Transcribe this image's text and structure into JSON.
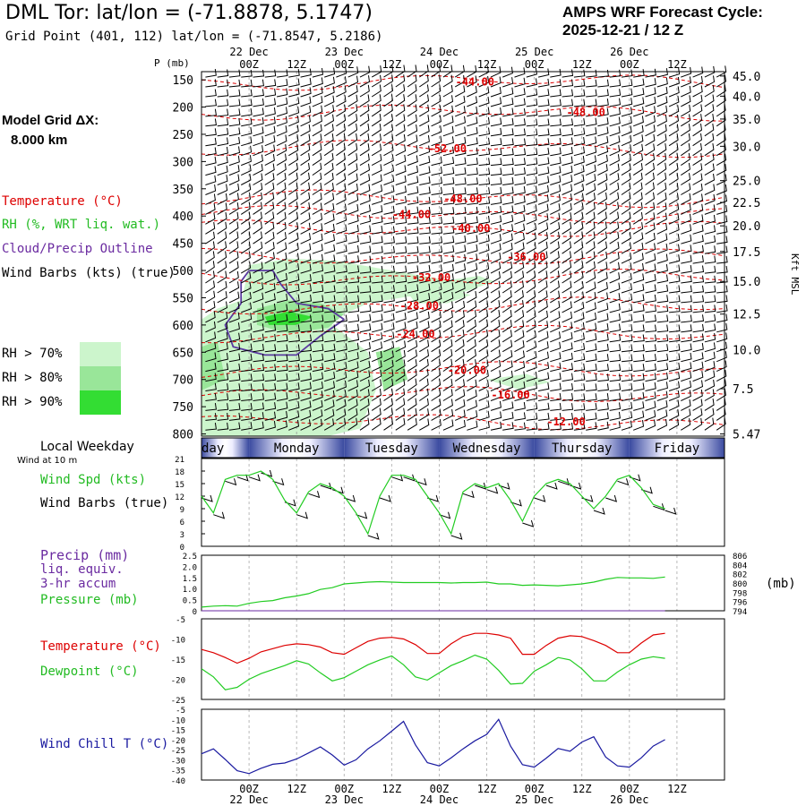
{
  "header": {
    "title": "DML Tor:  lat/lon = (-71.8878, 5.1747)",
    "grid_point": "Grid Point (401, 112) lat/lon = (-71.8547, 5.2186)",
    "cycle_line1": "AMPS WRF Forecast Cycle:",
    "cycle_line2": "2025-12-21 / 12  Z"
  },
  "left_panel": {
    "model_grid_label": "Model Grid ΔX:",
    "model_grid_value": "8.000 km",
    "legend_temperature": "Temperature (°C)",
    "legend_rh": "RH (%, WRT liq. wat.)",
    "legend_cloud": "Cloud/Precip Outline",
    "legend_wind": "Wind Barbs (kts) (true)",
    "rh_levels": [
      "RH > 70%",
      "RH > 80%",
      "RH > 90%"
    ],
    "rh_colors": [
      "#ccf5cc",
      "#99e699",
      "#33dd33"
    ],
    "local_weekday": "Local Weekday",
    "wind_at": "Wind at 10 m",
    "wind_spd": "Wind Spd (kts)",
    "wind_barbs": "Wind Barbs (true)",
    "precip": "Precip (mm)",
    "liq_equiv": "liq. equiv.",
    "accum": "3-hr accum",
    "pressure": "Pressure (mb)",
    "temperature": "Temperature (°C)",
    "dewpoint": "Dewpoint (°C)",
    "wind_chill": "Wind Chill T (°C)"
  },
  "colors": {
    "temp": "#dd0000",
    "dew": "#22cc22",
    "wind": "#1a1aa0",
    "precip": "#6a2aa0",
    "cloud": "#5a3aa0"
  },
  "chart_data": [
    {
      "type": "area",
      "title": "Pressure-height cross section",
      "ylabel": "P (mb)",
      "y2label": "Kft MSL",
      "p_ticks": [
        150,
        200,
        250,
        300,
        350,
        400,
        450,
        500,
        550,
        600,
        650,
        700,
        750,
        800
      ],
      "kft_ticks": [
        "45.0",
        "40.0",
        "35.0",
        "30.0",
        "25.0",
        "22.5",
        "20.0",
        "17.5",
        "15.0",
        "12.5",
        "10.0",
        "7.5",
        "5.47"
      ],
      "kft_pressure": [
        143,
        180,
        222,
        272,
        335,
        375,
        418,
        465,
        520,
        580,
        645,
        717,
        800
      ],
      "date_labels": [
        "22 Dec",
        "23 Dec",
        "24 Dec",
        "25 Dec",
        "26 Dec"
      ],
      "time_ticks": [
        "00Z",
        "12Z",
        "00Z",
        "12Z",
        "00Z",
        "12Z",
        "00Z",
        "12Z",
        "00Z",
        "12Z"
      ],
      "temperature_contour_labels": [
        {
          "text": "-44.00",
          "hour": 57,
          "p": 154
        },
        {
          "text": "-48.00",
          "hour": 85,
          "p": 210
        },
        {
          "text": "-52.00",
          "hour": 50,
          "p": 276
        },
        {
          "text": "-48.00",
          "hour": 54,
          "p": 368
        },
        {
          "text": "-44.00",
          "hour": 41,
          "p": 397
        },
        {
          "text": "-40.00",
          "hour": 56,
          "p": 423
        },
        {
          "text": "-36.00",
          "hour": 70,
          "p": 475
        },
        {
          "text": "-32.00",
          "hour": 46,
          "p": 513
        },
        {
          "text": "-28.00",
          "hour": 43,
          "p": 565
        },
        {
          "text": "-24.00",
          "hour": 42,
          "p": 617
        },
        {
          "text": "-20.00",
          "hour": 55,
          "p": 683
        },
        {
          "text": "-16.00",
          "hour": 66,
          "p": 728
        },
        {
          "text": "-12.00",
          "hour": 80,
          "p": 778
        }
      ]
    },
    {
      "type": "line",
      "title": "Wind speed",
      "y_ticks": [
        0,
        3,
        6,
        9,
        12,
        15,
        18,
        21
      ],
      "hours": [
        0,
        3,
        6,
        9,
        12,
        15,
        18,
        21,
        24,
        27,
        30,
        33,
        36,
        39,
        42,
        45,
        48,
        51,
        54,
        57,
        60,
        63,
        66,
        69,
        72,
        75,
        78,
        81,
        84,
        87,
        90,
        93,
        96,
        99,
        102,
        105,
        108,
        111,
        114,
        117
      ],
      "values": [
        12,
        8,
        16,
        17,
        17,
        18,
        16,
        11,
        8,
        13,
        15,
        14,
        12,
        8,
        3,
        12,
        17,
        17,
        16,
        12,
        8,
        3,
        13,
        15,
        14,
        15,
        11,
        6,
        12,
        15,
        16,
        15,
        12,
        9,
        12,
        16,
        17,
        14,
        10,
        9
      ]
    },
    {
      "type": "line",
      "title": "Pressure and precip",
      "y_ticks": [
        "0",
        "0.5",
        "1.0",
        "1.5",
        "2.0",
        "2.5"
      ],
      "y2_ticks": [
        "794",
        "796",
        "798",
        "800",
        "802",
        "804",
        "806"
      ],
      "y2label": "(mb)",
      "pressure_mb": [
        794.8,
        795.0,
        795.1,
        795.0,
        795.6,
        796.0,
        796.2,
        796.8,
        797.2,
        797.7,
        798.6,
        799.0,
        799.8,
        800.0,
        800.2,
        800.3,
        800.2,
        800.1,
        800.1,
        800.1,
        800.1,
        800.0,
        800.1,
        800.1,
        800.2,
        799.8,
        799.8,
        799.5,
        799.6,
        799.5,
        799.4,
        799.6,
        799.8,
        800.2,
        800.8,
        801.2,
        801.1,
        801.1,
        801.0,
        801.3
      ],
      "precip_mm": [
        0,
        0,
        0,
        0,
        0,
        0,
        0,
        0,
        0,
        0,
        0,
        0,
        0,
        0,
        0,
        0,
        0,
        0,
        0,
        0,
        0,
        0,
        0,
        0,
        0,
        0,
        0,
        0,
        0,
        0,
        0,
        0,
        0,
        0,
        0,
        0,
        0,
        0,
        0,
        0
      ]
    },
    {
      "type": "line",
      "title": "Temperature and dewpoint",
      "y_ticks": [
        -25,
        -20,
        -15,
        -10,
        -5
      ],
      "temperature": [
        -12.6,
        -13.4,
        -14.6,
        -16.0,
        -14.8,
        -13.2,
        -12.4,
        -11.6,
        -11.2,
        -11.4,
        -12.0,
        -13.4,
        -13.8,
        -12.2,
        -10.6,
        -9.8,
        -9.6,
        -10.0,
        -11.4,
        -13.6,
        -13.6,
        -11.2,
        -9.4,
        -8.6,
        -8.6,
        -9.0,
        -9.8,
        -13.8,
        -13.8,
        -11.6,
        -9.8,
        -9.2,
        -9.4,
        -10.4,
        -11.6,
        -13.4,
        -13.4,
        -11.0,
        -9.0,
        -8.6
      ],
      "dewpoint": [
        -17.4,
        -19.4,
        -22.6,
        -22.0,
        -20.0,
        -18.6,
        -17.6,
        -16.6,
        -15.4,
        -16.2,
        -18.4,
        -20.4,
        -19.6,
        -18.0,
        -16.4,
        -15.2,
        -14.2,
        -16.4,
        -19.4,
        -20.2,
        -18.4,
        -16.6,
        -15.4,
        -14.0,
        -15.0,
        -17.8,
        -21.2,
        -21.0,
        -18.0,
        -16.4,
        -14.6,
        -15.2,
        -17.4,
        -20.4,
        -20.4,
        -18.2,
        -16.4,
        -15.0,
        -14.4,
        -14.8
      ]
    },
    {
      "type": "line",
      "title": "Wind chill",
      "y_ticks": [
        -40,
        -35,
        -30,
        -25,
        -20,
        -15,
        -10,
        -5
      ],
      "values": [
        -27.0,
        -24.6,
        -29.8,
        -35.4,
        -36.8,
        -34.2,
        -32.2,
        -31.6,
        -29.6,
        -26.6,
        -23.6,
        -27.6,
        -32.6,
        -30.0,
        -24.6,
        -20.6,
        -15.8,
        -11.0,
        -22.6,
        -31.4,
        -33.0,
        -29.0,
        -24.6,
        -20.6,
        -17.4,
        -10.0,
        -23.2,
        -32.4,
        -33.6,
        -29.2,
        -24.4,
        -25.8,
        -21.2,
        -18.6,
        -28.6,
        -33.0,
        -33.6,
        -29.0,
        -23.2,
        -20.0
      ]
    }
  ],
  "weekday_bar": {
    "days": [
      "Sunday",
      "Monday",
      "Tuesday",
      "Wednesday",
      "Thursday",
      "Friday"
    ]
  }
}
